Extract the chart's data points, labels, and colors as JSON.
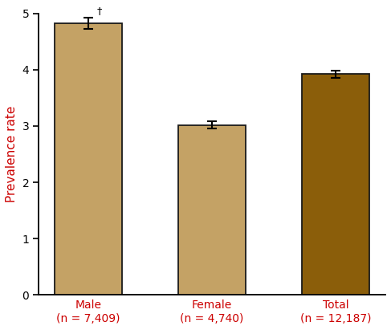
{
  "categories": [
    "Male\n(n = 7,409)",
    "Female\n(n = 4,740)",
    "Total\n(n = 12,187)"
  ],
  "values": [
    4.83,
    3.02,
    3.92
  ],
  "errors": [
    0.1,
    0.07,
    0.07
  ],
  "bar_colors": [
    "#C4A265",
    "#C4A265",
    "#8B5E0A"
  ],
  "bar_edgecolor": "#1a1a1a",
  "ylabel": "Prevalence rate",
  "ylabel_color": "#cc0000",
  "xlabel_color": "#cc0000",
  "ylim": [
    0,
    5
  ],
  "yticks": [
    0,
    1,
    2,
    3,
    4,
    5
  ],
  "tick_label_fontsize": 10,
  "ylabel_fontsize": 11,
  "xlabel_fontsize": 10,
  "background_color": "#ffffff",
  "dagger_symbol": "†",
  "bar_width": 0.55
}
